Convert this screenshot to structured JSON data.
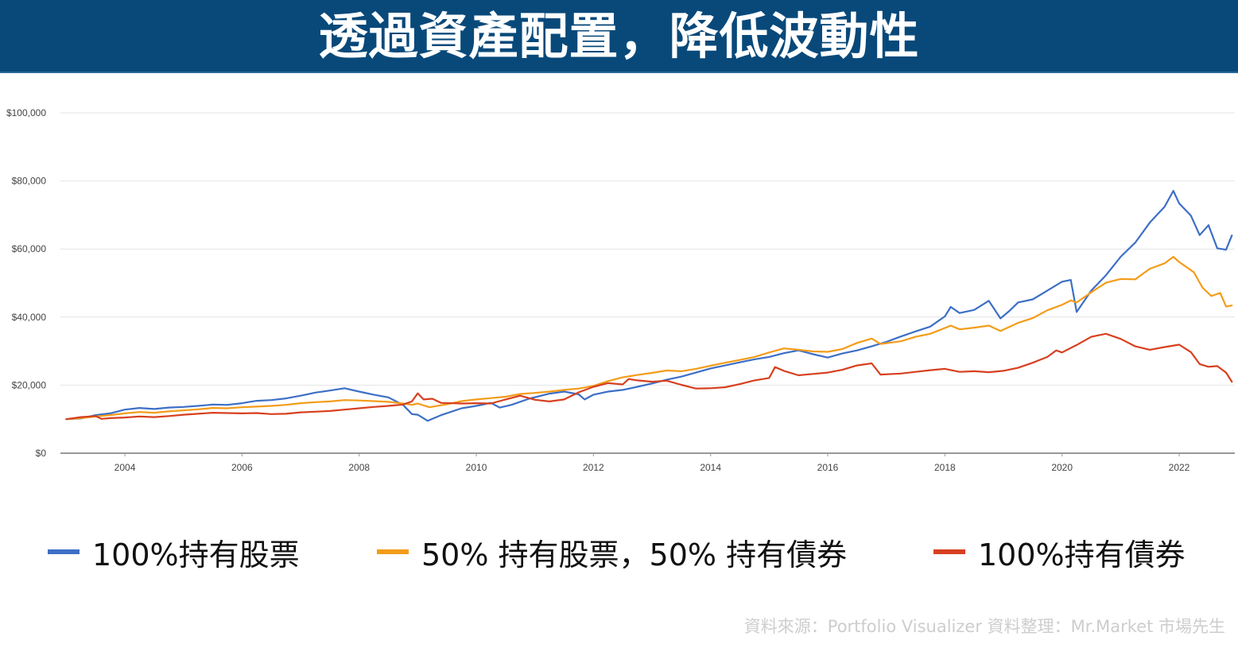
{
  "header": {
    "title": "透過資產配置，降低波動性",
    "background": "#08497a"
  },
  "chart_data": {
    "type": "line",
    "title": "透過資產配置，降低波動性",
    "xlabel": "",
    "ylabel": "",
    "x_ticks": [
      "2004",
      "2006",
      "2008",
      "2010",
      "2012",
      "2014",
      "2016",
      "2018",
      "2020",
      "2022"
    ],
    "y_ticks": [
      "$0",
      "$20,000",
      "$40,000",
      "$60,000",
      "$80,000",
      "$100,000"
    ],
    "ylim": [
      0,
      100000
    ],
    "xlim": [
      2002.9,
      2022.95
    ],
    "grid": true,
    "legend_position": "bottom",
    "series": [
      {
        "name": "100%持有股票",
        "color": "#3d6fc6",
        "points": [
          [
            2003.0,
            10000
          ],
          [
            2003.25,
            10200
          ],
          [
            2003.5,
            11200
          ],
          [
            2003.75,
            11700
          ],
          [
            2004.0,
            12800
          ],
          [
            2004.25,
            13300
          ],
          [
            2004.5,
            13000
          ],
          [
            2004.75,
            13400
          ],
          [
            2005.0,
            13600
          ],
          [
            2005.25,
            13900
          ],
          [
            2005.5,
            14300
          ],
          [
            2005.75,
            14200
          ],
          [
            2006.0,
            14700
          ],
          [
            2006.25,
            15400
          ],
          [
            2006.5,
            15600
          ],
          [
            2006.75,
            16100
          ],
          [
            2007.0,
            16900
          ],
          [
            2007.25,
            17800
          ],
          [
            2007.5,
            18400
          ],
          [
            2007.75,
            19100
          ],
          [
            2008.0,
            18100
          ],
          [
            2008.25,
            17200
          ],
          [
            2008.5,
            16400
          ],
          [
            2008.75,
            14200
          ],
          [
            2008.9,
            11500
          ],
          [
            2009.0,
            11300
          ],
          [
            2009.17,
            9500
          ],
          [
            2009.4,
            11200
          ],
          [
            2009.75,
            13200
          ],
          [
            2010.0,
            13900
          ],
          [
            2010.25,
            14800
          ],
          [
            2010.4,
            13400
          ],
          [
            2010.6,
            14200
          ],
          [
            2010.9,
            16000
          ],
          [
            2011.25,
            17500
          ],
          [
            2011.5,
            18100
          ],
          [
            2011.75,
            17300
          ],
          [
            2011.85,
            15800
          ],
          [
            2012.0,
            17200
          ],
          [
            2012.25,
            18100
          ],
          [
            2012.5,
            18600
          ],
          [
            2012.75,
            19500
          ],
          [
            2013.0,
            20500
          ],
          [
            2013.25,
            21600
          ],
          [
            2013.5,
            22500
          ],
          [
            2013.75,
            23700
          ],
          [
            2014.0,
            24900
          ],
          [
            2014.25,
            25800
          ],
          [
            2014.5,
            26700
          ],
          [
            2014.75,
            27600
          ],
          [
            2015.0,
            28300
          ],
          [
            2015.25,
            29400
          ],
          [
            2015.5,
            30200
          ],
          [
            2015.75,
            29100
          ],
          [
            2016.0,
            28100
          ],
          [
            2016.25,
            29300
          ],
          [
            2016.5,
            30200
          ],
          [
            2016.75,
            31400
          ],
          [
            2017.0,
            32700
          ],
          [
            2017.25,
            34300
          ],
          [
            2017.5,
            35800
          ],
          [
            2017.75,
            37200
          ],
          [
            2018.0,
            40200
          ],
          [
            2018.1,
            43000
          ],
          [
            2018.25,
            41200
          ],
          [
            2018.5,
            42100
          ],
          [
            2018.75,
            44800
          ],
          [
            2018.95,
            39600
          ],
          [
            2019.1,
            41800
          ],
          [
            2019.25,
            44300
          ],
          [
            2019.5,
            45200
          ],
          [
            2019.75,
            47800
          ],
          [
            2020.0,
            50400
          ],
          [
            2020.15,
            50900
          ],
          [
            2020.25,
            41500
          ],
          [
            2020.5,
            47800
          ],
          [
            2020.75,
            52300
          ],
          [
            2021.0,
            57700
          ],
          [
            2021.25,
            61900
          ],
          [
            2021.5,
            67800
          ],
          [
            2021.75,
            72400
          ],
          [
            2021.9,
            77100
          ],
          [
            2022.0,
            73400
          ],
          [
            2022.2,
            69800
          ],
          [
            2022.35,
            64100
          ],
          [
            2022.5,
            67000
          ],
          [
            2022.65,
            60200
          ],
          [
            2022.8,
            59800
          ],
          [
            2022.9,
            64000
          ]
        ]
      },
      {
        "name": "50% 持有股票，50% 持有債券",
        "color": "#f39c19",
        "points": [
          [
            2003.0,
            10000
          ],
          [
            2003.25,
            10300
          ],
          [
            2003.5,
            10800
          ],
          [
            2003.75,
            11200
          ],
          [
            2004.0,
            11700
          ],
          [
            2004.25,
            12100
          ],
          [
            2004.5,
            11900
          ],
          [
            2004.75,
            12300
          ],
          [
            2005.0,
            12600
          ],
          [
            2005.25,
            12900
          ],
          [
            2005.5,
            13300
          ],
          [
            2005.75,
            13200
          ],
          [
            2006.0,
            13500
          ],
          [
            2006.25,
            13700
          ],
          [
            2006.5,
            13900
          ],
          [
            2006.75,
            14200
          ],
          [
            2007.0,
            14700
          ],
          [
            2007.25,
            15000
          ],
          [
            2007.5,
            15200
          ],
          [
            2007.75,
            15600
          ],
          [
            2008.0,
            15500
          ],
          [
            2008.25,
            15300
          ],
          [
            2008.5,
            15100
          ],
          [
            2008.75,
            14600
          ],
          [
            2008.9,
            14200
          ],
          [
            2009.0,
            14600
          ],
          [
            2009.2,
            13500
          ],
          [
            2009.5,
            14400
          ],
          [
            2009.75,
            15300
          ],
          [
            2010.0,
            15800
          ],
          [
            2010.25,
            16200
          ],
          [
            2010.5,
            16600
          ],
          [
            2010.75,
            17400
          ],
          [
            2011.0,
            17700
          ],
          [
            2011.25,
            18100
          ],
          [
            2011.5,
            18600
          ],
          [
            2011.75,
            19000
          ],
          [
            2012.0,
            19800
          ],
          [
            2012.25,
            21200
          ],
          [
            2012.5,
            22300
          ],
          [
            2012.75,
            23000
          ],
          [
            2013.0,
            23600
          ],
          [
            2013.25,
            24300
          ],
          [
            2013.5,
            24100
          ],
          [
            2013.75,
            24800
          ],
          [
            2014.0,
            25700
          ],
          [
            2014.25,
            26600
          ],
          [
            2014.5,
            27400
          ],
          [
            2014.75,
            28300
          ],
          [
            2015.0,
            29600
          ],
          [
            2015.25,
            30800
          ],
          [
            2015.5,
            30400
          ],
          [
            2015.75,
            29900
          ],
          [
            2016.0,
            29800
          ],
          [
            2016.25,
            30600
          ],
          [
            2016.5,
            32400
          ],
          [
            2016.75,
            33700
          ],
          [
            2016.9,
            32100
          ],
          [
            2017.25,
            32900
          ],
          [
            2017.5,
            34200
          ],
          [
            2017.75,
            35100
          ],
          [
            2018.0,
            36800
          ],
          [
            2018.1,
            37500
          ],
          [
            2018.25,
            36400
          ],
          [
            2018.5,
            36900
          ],
          [
            2018.75,
            37500
          ],
          [
            2018.95,
            35900
          ],
          [
            2019.25,
            38300
          ],
          [
            2019.5,
            39700
          ],
          [
            2019.75,
            42000
          ],
          [
            2020.0,
            43600
          ],
          [
            2020.15,
            44900
          ],
          [
            2020.25,
            44300
          ],
          [
            2020.5,
            47300
          ],
          [
            2020.75,
            50100
          ],
          [
            2021.0,
            51200
          ],
          [
            2021.25,
            51100
          ],
          [
            2021.5,
            54200
          ],
          [
            2021.75,
            55800
          ],
          [
            2021.9,
            57700
          ],
          [
            2022.0,
            56200
          ],
          [
            2022.25,
            53200
          ],
          [
            2022.4,
            48600
          ],
          [
            2022.55,
            46200
          ],
          [
            2022.7,
            47100
          ],
          [
            2022.8,
            43100
          ],
          [
            2022.9,
            43400
          ]
        ]
      },
      {
        "name": "100%持有債券",
        "color": "#d7401f",
        "points": [
          [
            2003.0,
            10000
          ],
          [
            2003.25,
            10600
          ],
          [
            2003.5,
            10900
          ],
          [
            2003.6,
            10100
          ],
          [
            2003.75,
            10300
          ],
          [
            2004.0,
            10500
          ],
          [
            2004.25,
            10800
          ],
          [
            2004.5,
            10600
          ],
          [
            2004.75,
            10900
          ],
          [
            2005.0,
            11300
          ],
          [
            2005.25,
            11600
          ],
          [
            2005.5,
            11900
          ],
          [
            2005.75,
            11800
          ],
          [
            2006.0,
            11700
          ],
          [
            2006.25,
            11800
          ],
          [
            2006.5,
            11500
          ],
          [
            2006.75,
            11600
          ],
          [
            2007.0,
            12000
          ],
          [
            2007.25,
            12200
          ],
          [
            2007.5,
            12400
          ],
          [
            2007.75,
            12800
          ],
          [
            2008.0,
            13200
          ],
          [
            2008.25,
            13600
          ],
          [
            2008.5,
            13900
          ],
          [
            2008.75,
            14300
          ],
          [
            2008.9,
            15200
          ],
          [
            2009.0,
            17600
          ],
          [
            2009.1,
            15800
          ],
          [
            2009.25,
            16000
          ],
          [
            2009.4,
            14800
          ],
          [
            2009.75,
            14600
          ],
          [
            2010.0,
            14700
          ],
          [
            2010.25,
            14600
          ],
          [
            2010.5,
            15800
          ],
          [
            2010.75,
            16900
          ],
          [
            2011.0,
            15700
          ],
          [
            2011.25,
            15200
          ],
          [
            2011.5,
            15800
          ],
          [
            2011.75,
            17900
          ],
          [
            2012.0,
            19500
          ],
          [
            2012.25,
            20600
          ],
          [
            2012.5,
            20200
          ],
          [
            2012.6,
            21800
          ],
          [
            2012.75,
            21400
          ],
          [
            2013.0,
            21000
          ],
          [
            2013.25,
            21300
          ],
          [
            2013.5,
            20100
          ],
          [
            2013.75,
            19000
          ],
          [
            2014.0,
            19100
          ],
          [
            2014.25,
            19400
          ],
          [
            2014.5,
            20300
          ],
          [
            2014.75,
            21400
          ],
          [
            2015.0,
            22100
          ],
          [
            2015.1,
            25300
          ],
          [
            2015.25,
            24200
          ],
          [
            2015.5,
            22900
          ],
          [
            2015.75,
            23300
          ],
          [
            2016.0,
            23700
          ],
          [
            2016.25,
            24500
          ],
          [
            2016.5,
            25800
          ],
          [
            2016.75,
            26400
          ],
          [
            2016.9,
            23100
          ],
          [
            2017.25,
            23400
          ],
          [
            2017.5,
            23900
          ],
          [
            2017.75,
            24400
          ],
          [
            2018.0,
            24800
          ],
          [
            2018.25,
            23900
          ],
          [
            2018.5,
            24100
          ],
          [
            2018.75,
            23800
          ],
          [
            2019.0,
            24200
          ],
          [
            2019.25,
            25100
          ],
          [
            2019.5,
            26600
          ],
          [
            2019.75,
            28300
          ],
          [
            2019.9,
            30200
          ],
          [
            2020.0,
            29600
          ],
          [
            2020.25,
            31800
          ],
          [
            2020.5,
            34200
          ],
          [
            2020.75,
            35100
          ],
          [
            2021.0,
            33600
          ],
          [
            2021.25,
            31400
          ],
          [
            2021.5,
            30400
          ],
          [
            2021.75,
            31200
          ],
          [
            2022.0,
            31900
          ],
          [
            2022.2,
            29700
          ],
          [
            2022.35,
            26200
          ],
          [
            2022.5,
            25400
          ],
          [
            2022.65,
            25600
          ],
          [
            2022.8,
            23700
          ],
          [
            2022.9,
            21000
          ]
        ]
      }
    ]
  },
  "legend": {
    "items": [
      {
        "label": "100%持有股票",
        "color": "#3d6fc6"
      },
      {
        "label": "50% 持有股票，50% 持有債券",
        "color": "#f39c19"
      },
      {
        "label": "100%持有債券",
        "color": "#d7401f"
      }
    ]
  },
  "footer": {
    "source": "資料來源：Portfolio Visualizer  資料整理：Mr.Market 市場先生"
  }
}
